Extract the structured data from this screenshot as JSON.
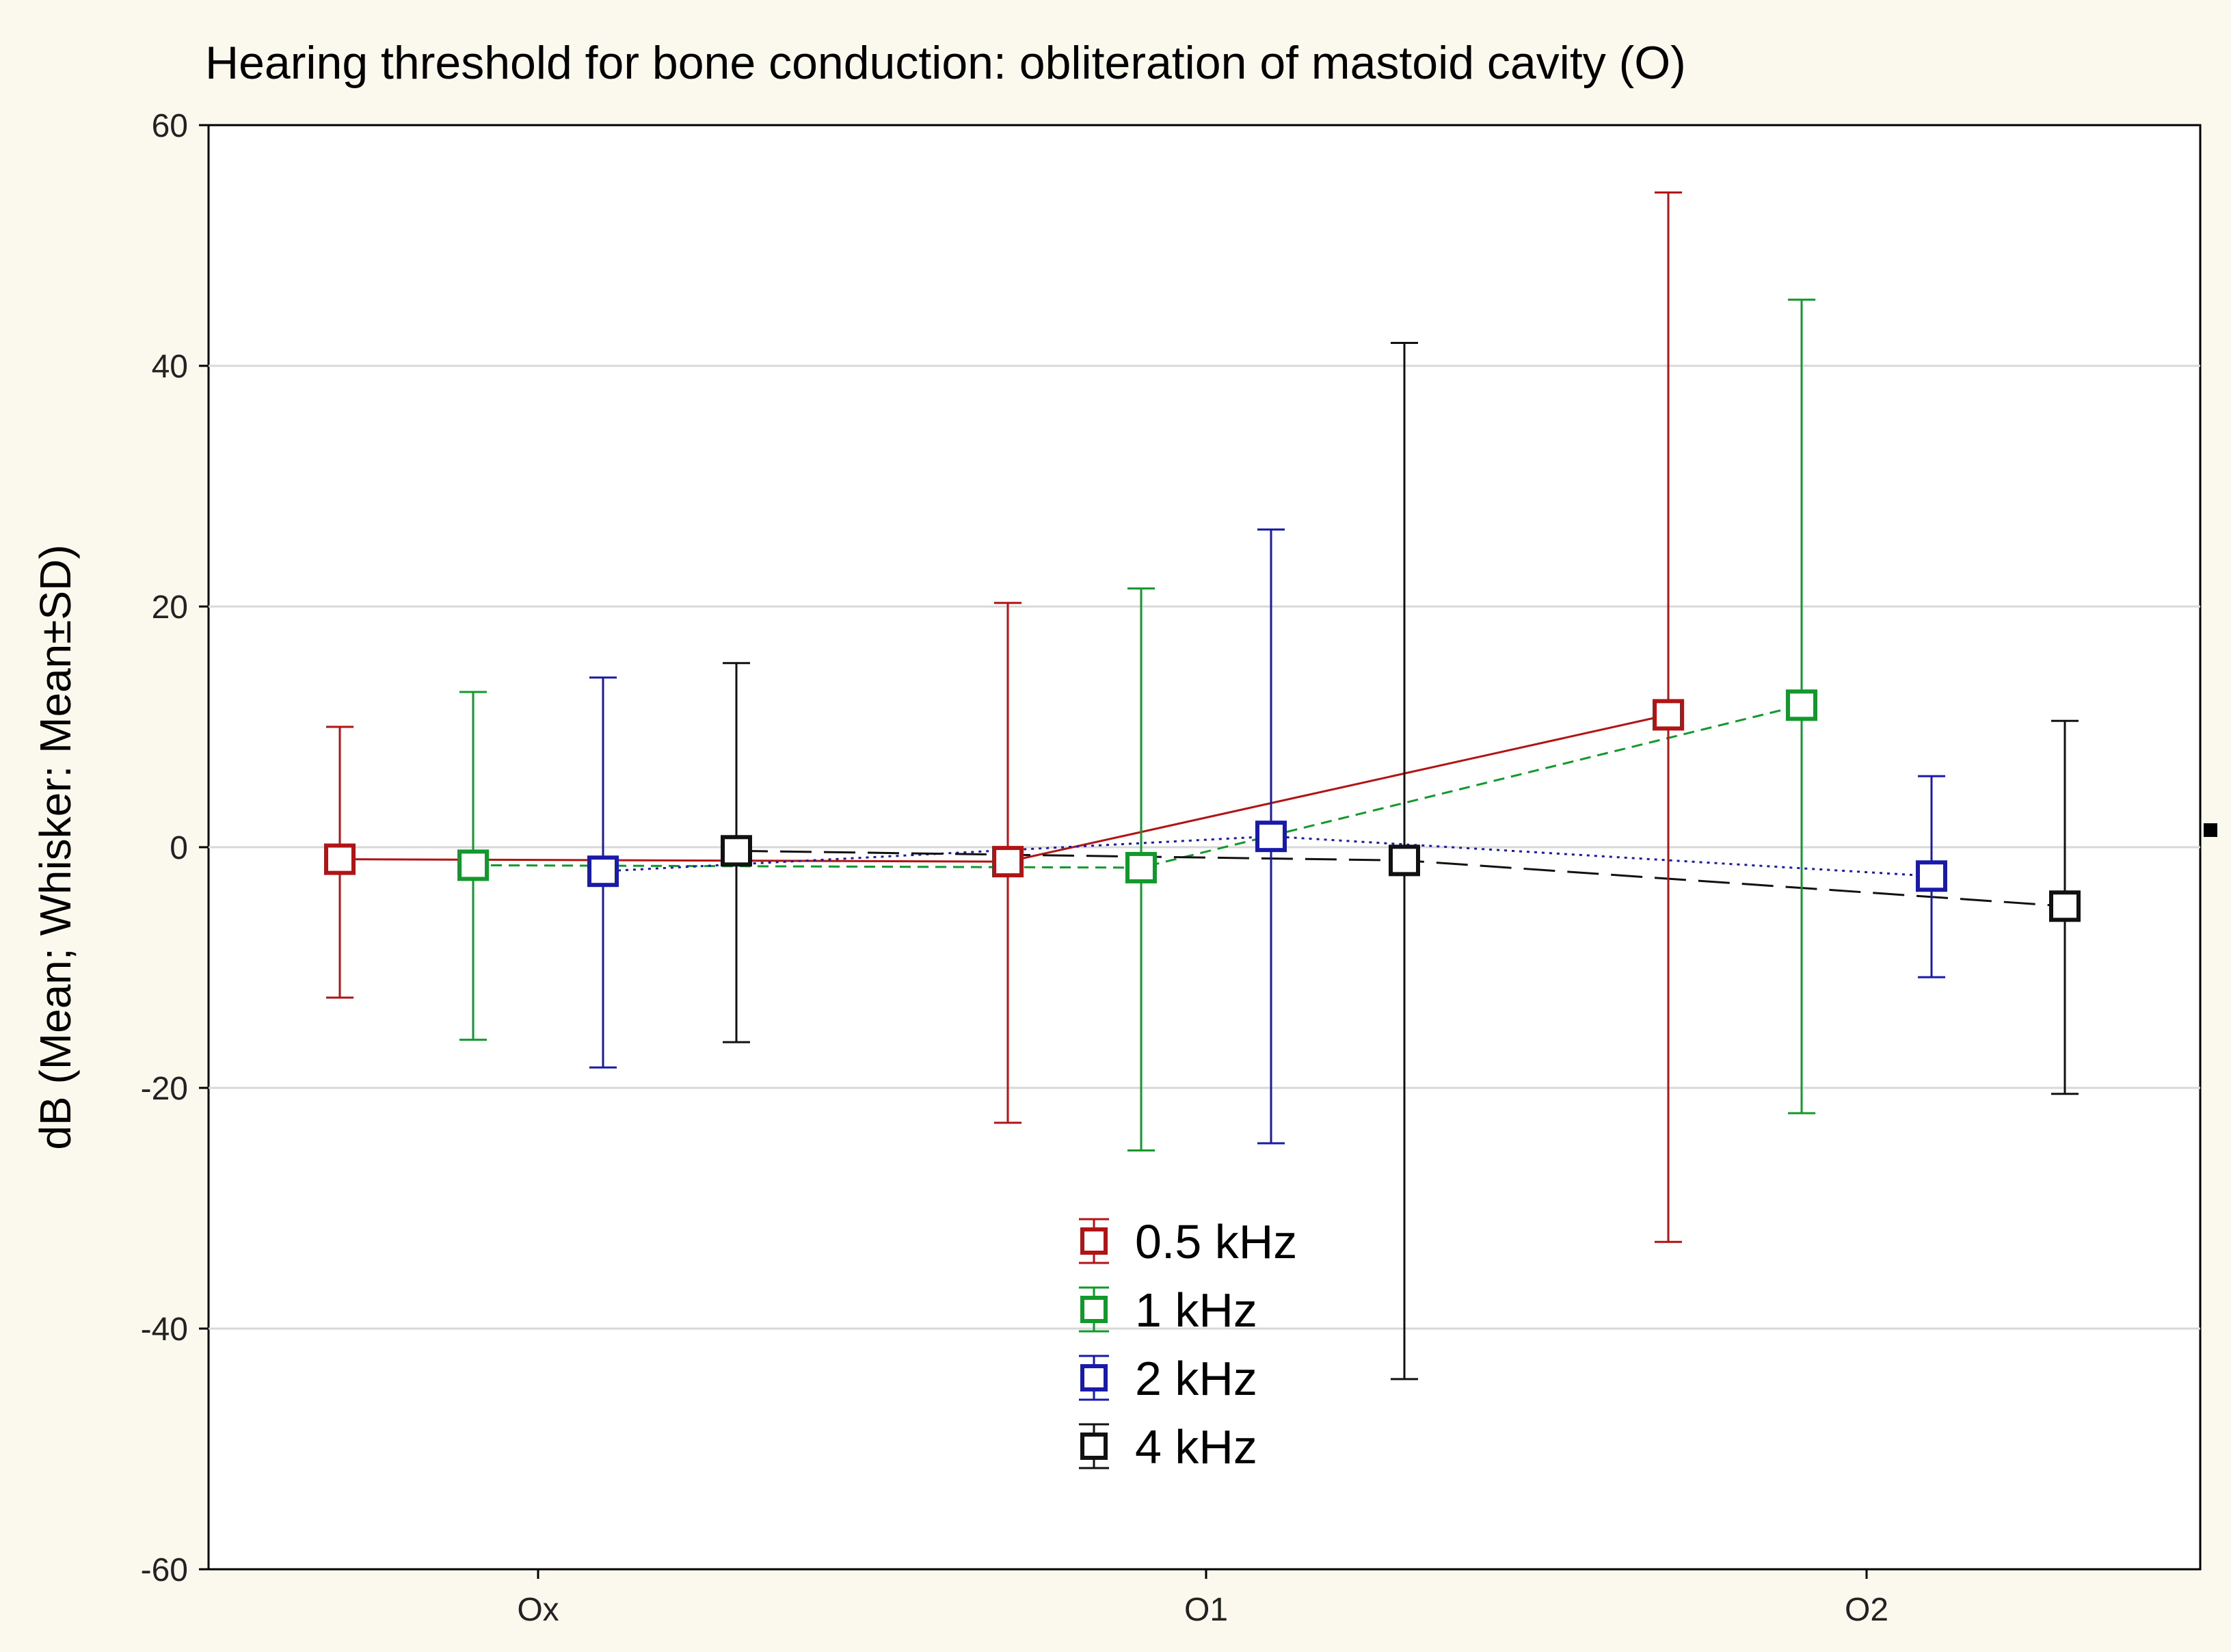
{
  "chart_data": {
    "type": "line",
    "title": "Hearing threshold for bone conduction: obliteration of mastoid cavity (O)",
    "xlabel": "",
    "ylabel": "dB (Mean; Whisker: Mean±SD)",
    "categories": [
      "Ox",
      "O1",
      "O2"
    ],
    "ylim": [
      -60,
      60
    ],
    "yticks": [
      -60,
      -40,
      -20,
      0,
      20,
      40,
      60
    ],
    "grid": true,
    "legend_position": "bottom-center",
    "series": [
      {
        "name": "0.5 kHz",
        "color": "#b01414",
        "dash": "solid",
        "mean": [
          -1,
          -1.2,
          11
        ],
        "low": [
          -12.5,
          -22.9,
          -32.8
        ],
        "high": [
          10,
          20.3,
          54.4
        ]
      },
      {
        "name": "1 kHz",
        "color": "#119a2b",
        "dash": "short-dash",
        "mean": [
          -1.5,
          -1.7,
          11.8
        ],
        "low": [
          -16,
          -25.2,
          -22.1
        ],
        "high": [
          12.9,
          21.5,
          45.5
        ]
      },
      {
        "name": "2 kHz",
        "color": "#1a1aa8",
        "dash": "dotted",
        "mean": [
          -2,
          0.9,
          -2.4
        ],
        "low": [
          -18.3,
          -24.6,
          -10.8
        ],
        "high": [
          14.1,
          26.4,
          5.9
        ]
      },
      {
        "name": "4 kHz",
        "color": "#111111",
        "dash": "long-dash",
        "mean": [
          -0.3,
          -1.1,
          -4.9
        ],
        "low": [
          -16.2,
          -44.2,
          -20.5
        ],
        "high": [
          15.3,
          41.9,
          10.5
        ]
      }
    ]
  }
}
